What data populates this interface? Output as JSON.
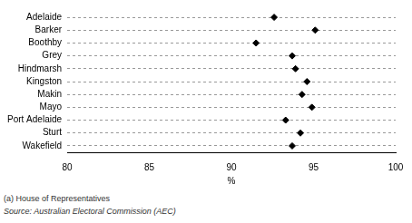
{
  "chart_data": {
    "type": "dot",
    "orientation": "horizontal",
    "categories": [
      "Adelaide",
      "Barker",
      "Boothby",
      "Grey",
      "Hindmarsh",
      "Kingston",
      "Makin",
      "Mayo",
      "Port Adelaide",
      "Sturt",
      "Wakefield"
    ],
    "values": [
      92.6,
      95.1,
      91.5,
      93.7,
      93.9,
      94.6,
      94.3,
      94.9,
      93.3,
      94.2,
      93.7
    ],
    "color": "#000000",
    "marker": "diamond",
    "x_label": "%",
    "xlim": [
      80,
      100
    ],
    "xticks": [
      80,
      85,
      90,
      95,
      100
    ],
    "grid": true,
    "annotations": [
      "(a) House of Representatives",
      "Source: Australian Electoral Commission (AEC)"
    ]
  }
}
